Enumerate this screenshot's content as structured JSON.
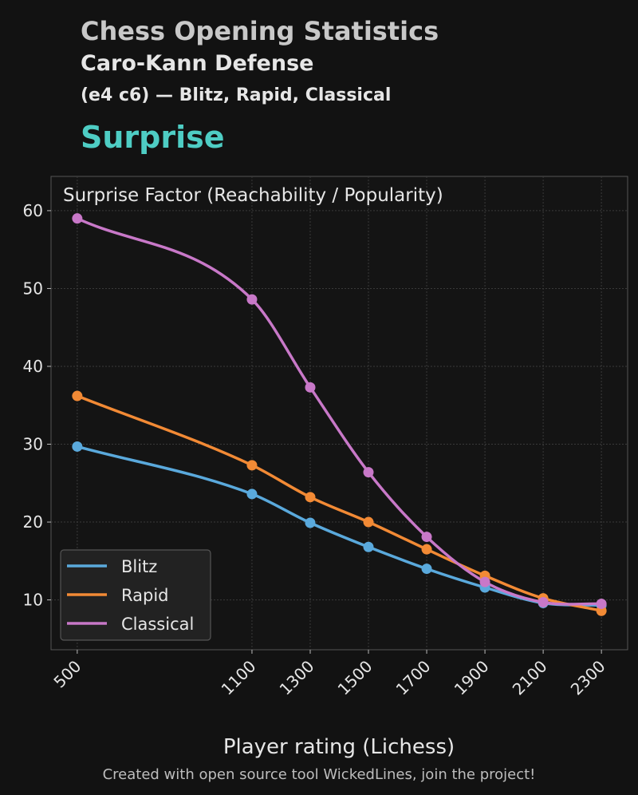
{
  "header": {
    "title": "Chess Opening Statistics",
    "opening": "Caro-Kann Defense",
    "moves": "(e4 c6) — Blitz, Rapid, Classical",
    "section": "Surprise"
  },
  "footer": "Created with open source tool WickedLines, join the project!",
  "chart_data": {
    "type": "line",
    "title": "Surprise Factor (Reachability / Popularity)",
    "xlabel": "Player rating (Lichess)",
    "ylabel": "",
    "x": [
      500,
      1100,
      1300,
      1500,
      1700,
      1900,
      2100,
      2300
    ],
    "xticks": [
      "500",
      "1100",
      "1300",
      "1500",
      "1700",
      "1900",
      "2100",
      "2300"
    ],
    "yticks": [
      10,
      20,
      30,
      40,
      50,
      60
    ],
    "xlim": [
      410,
      2390
    ],
    "ylim": [
      3.6,
      64.4
    ],
    "grid": true,
    "legend_position": "lower-left",
    "series": [
      {
        "name": "Blitz",
        "color": "#5aa9dc",
        "values": [
          29.7,
          23.6,
          19.9,
          16.8,
          14.0,
          11.6,
          9.6,
          9.3
        ]
      },
      {
        "name": "Rapid",
        "color": "#f28a35",
        "values": [
          36.2,
          27.3,
          23.2,
          20.0,
          16.5,
          13.1,
          10.2,
          8.6
        ]
      },
      {
        "name": "Classical",
        "color": "#c878c8",
        "values": [
          59.0,
          48.6,
          37.3,
          26.4,
          18.1,
          12.3,
          9.7,
          9.5
        ]
      }
    ]
  }
}
